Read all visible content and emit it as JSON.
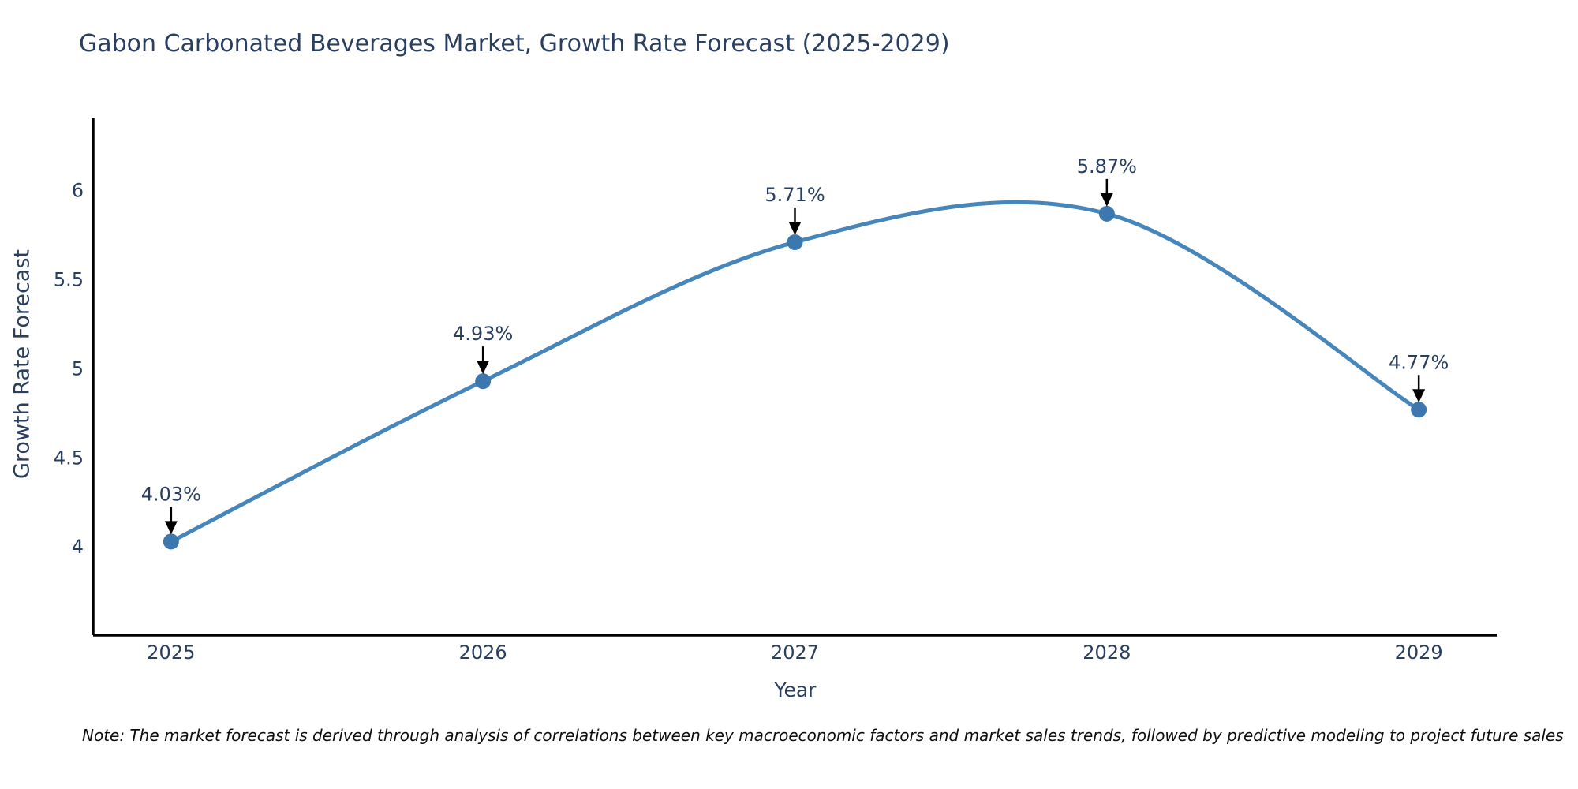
{
  "title": "Gabon Carbonated Beverages Market, Growth Rate Forecast (2025-2029)",
  "note": "Note: The market forecast is derived through analysis of correlations between key macroeconomic factors and market sales trends, followed by predictive modeling to project future sales",
  "colors": {
    "line": "#4786ba",
    "marker": "#3c78ad",
    "axis": "#000000",
    "text": "#2a3f5f",
    "annotation_arrow": "#000000",
    "background": "#ffffff"
  },
  "chart_data": {
    "type": "line",
    "title": "Gabon Carbonated Beverages Market, Growth Rate Forecast (2025-2029)",
    "xlabel": "Year",
    "ylabel": "Growth Rate Forecast",
    "x": [
      2025,
      2026,
      2027,
      2028,
      2029
    ],
    "values": [
      4.03,
      4.93,
      5.71,
      5.87,
      4.77
    ],
    "point_labels": [
      "4.03%",
      "4.93%",
      "5.71%",
      "5.87%",
      "4.77%"
    ],
    "xtick_labels": [
      "2025",
      "2026",
      "2027",
      "2028",
      "2029"
    ],
    "ytick_values": [
      4,
      4.5,
      5,
      5.5,
      6
    ],
    "ytick_labels": [
      "4",
      "4.5",
      "5",
      "5.5",
      "6"
    ],
    "xlim": [
      2024.75,
      2029.25
    ],
    "ylim": [
      3.505,
      6.405
    ],
    "line_shape": "spline",
    "grid": false,
    "legend": false,
    "annotations": "each point labeled with percentage and downward black arrow"
  }
}
